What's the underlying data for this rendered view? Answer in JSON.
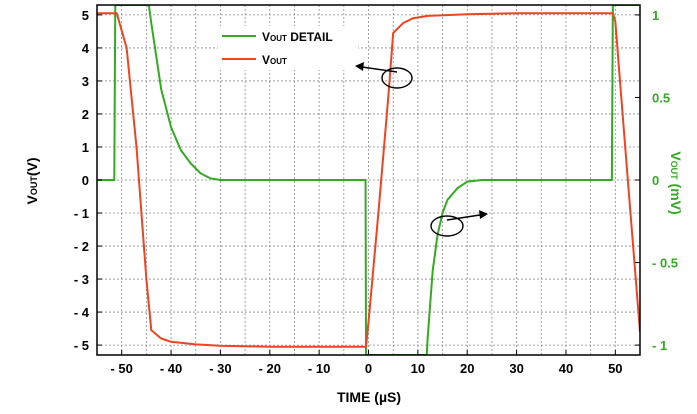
{
  "chart_data": {
    "type": "line",
    "title": "",
    "xlabel": "TIME (µS)",
    "ylabel_left": "VOUT(V)",
    "ylabel_right": "VOUT (mV)",
    "xlim": [
      -55,
      55
    ],
    "ylim_left": [
      -5.3,
      5.3
    ],
    "ylim_right": [
      -1.06,
      1.06
    ],
    "grid": true,
    "legend_position": "top-center",
    "x_ticks": [
      -50,
      -40,
      -30,
      -20,
      -10,
      0,
      10,
      20,
      30,
      40,
      50
    ],
    "x_tick_labels": [
      "- 50",
      "- 40",
      "- 30",
      "- 20",
      "- 10",
      "0",
      "10",
      "20",
      "30",
      "40",
      "50"
    ],
    "y_left_ticks": [
      5,
      4,
      3,
      2,
      1,
      0,
      -1,
      -2,
      -3,
      -4,
      -5
    ],
    "y_left_tick_labels": [
      "5",
      "4",
      "3",
      "2",
      "1",
      "0",
      "- 1",
      "- 2",
      "- 3",
      "- 4",
      "- 5"
    ],
    "y_right_ticks": [
      1,
      0.5,
      0,
      -0.5,
      -1
    ],
    "y_right_tick_labels": [
      "1",
      "0.5",
      "0",
      "- 0.5",
      "- 1"
    ],
    "series": [
      {
        "name": "VOUT DETAIL",
        "axis": "right",
        "color": "#33aa22",
        "points": [
          [
            -55,
            0
          ],
          [
            -51.5,
            0
          ],
          [
            -51.3,
            1.06
          ],
          [
            -44.5,
            1.06
          ],
          [
            -44,
            0.95
          ],
          [
            -42,
            0.55
          ],
          [
            -40,
            0.32
          ],
          [
            -38,
            0.18
          ],
          [
            -36,
            0.1
          ],
          [
            -34,
            0.04
          ],
          [
            -32,
            0.01
          ],
          [
            -30,
            0
          ],
          [
            -0.6,
            0
          ],
          [
            -0.5,
            -1.06
          ],
          [
            11.8,
            -1.06
          ],
          [
            12,
            -0.95
          ],
          [
            13,
            -0.55
          ],
          [
            14,
            -0.33
          ],
          [
            15,
            -0.2
          ],
          [
            16,
            -0.12
          ],
          [
            18,
            -0.05
          ],
          [
            20,
            -0.01
          ],
          [
            23,
            0
          ],
          [
            49.3,
            0
          ],
          [
            49.5,
            1.06
          ],
          [
            55,
            1.06
          ]
        ]
      },
      {
        "name": "VOUT",
        "axis": "left",
        "color": "#ee4422",
        "points": [
          [
            -55,
            5.05
          ],
          [
            -51,
            5.05
          ],
          [
            -49,
            4.0
          ],
          [
            -47,
            1.0
          ],
          [
            -45,
            -3.0
          ],
          [
            -44,
            -4.55
          ],
          [
            -42,
            -4.8
          ],
          [
            -40,
            -4.9
          ],
          [
            -35,
            -4.98
          ],
          [
            -30,
            -5.02
          ],
          [
            -20,
            -5.05
          ],
          [
            -0.5,
            -5.05
          ],
          [
            0,
            -4.3
          ],
          [
            2,
            -1.0
          ],
          [
            4,
            2.5
          ],
          [
            5,
            4.45
          ],
          [
            7,
            4.75
          ],
          [
            9,
            4.9
          ],
          [
            12,
            4.97
          ],
          [
            20,
            5.02
          ],
          [
            30,
            5.05
          ],
          [
            49.5,
            5.05
          ],
          [
            50,
            4.8
          ],
          [
            52,
            1.0
          ],
          [
            55,
            -4.6
          ]
        ]
      }
    ],
    "annotations": [
      "VOUT curve → left axis",
      "VOUT DETAIL curve → right axis"
    ]
  },
  "legend": {
    "items": [
      {
        "main": "V",
        "sub": "OUT",
        "rest": " DETAIL",
        "color": "#33aa22"
      },
      {
        "main": "V",
        "sub": "OUT",
        "rest": "",
        "color": "#ee4422"
      }
    ]
  },
  "axis_labels": {
    "left_main": "V",
    "left_sub": "OUT",
    "left_rest": "(V)",
    "right_main": "V",
    "right_sub": "OUT",
    "right_rest": " (mV)",
    "x": "TIME (µS)"
  }
}
